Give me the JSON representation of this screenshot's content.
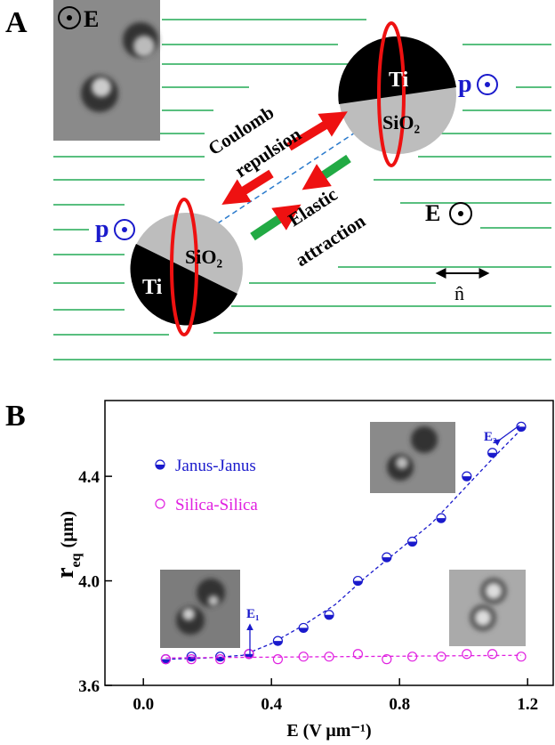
{
  "panel_a": {
    "label": "A",
    "inset_label": "E",
    "top_particle": {
      "cap": "Ti",
      "body": "SiO₂",
      "dipole": "p"
    },
    "bottom_particle": {
      "cap": "Ti",
      "body": "SiO₂",
      "dipole": "p"
    },
    "repulsion": [
      "Coulomb",
      "repulsion"
    ],
    "attraction": [
      "Elastic",
      "attraction"
    ],
    "field": "E",
    "director": "n̂"
  },
  "chart_data": {
    "type": "scatter",
    "panel_label": "B",
    "xlabel": "E (V μm⁻¹)",
    "ylabel": "r",
    "ylabel_subscript": "eq",
    "ylabel_unit": "(μm)",
    "xlim": [
      -0.12,
      1.28
    ],
    "ylim": [
      3.6,
      4.69
    ],
    "xticks": [
      {
        "value": 0,
        "label": "0.0"
      },
      0.4,
      0.8,
      1.2
    ],
    "yticks": [
      3.6,
      {
        "value": 4,
        "label": "4.0"
      },
      4.4
    ],
    "series": [
      {
        "name": "Janus-Janus",
        "color": "#1a1acc",
        "marker": "half",
        "x": [
          0.07,
          0.15,
          0.24,
          0.33,
          0.42,
          0.5,
          0.58,
          0.67,
          0.76,
          0.84,
          0.93,
          1.01,
          1.09,
          1.18
        ],
        "values": [
          3.7,
          3.71,
          3.71,
          3.72,
          3.77,
          3.82,
          3.87,
          4.0,
          4.09,
          4.15,
          4.24,
          4.4,
          4.49,
          4.59
        ],
        "fit_x": [
          0.07,
          0.2,
          0.31,
          0.4,
          0.5,
          0.6,
          0.7,
          0.8,
          0.9,
          1.0,
          1.1,
          1.18
        ],
        "fit_values": [
          3.7,
          3.705,
          3.715,
          3.76,
          3.83,
          3.91,
          4.02,
          4.12,
          4.22,
          4.35,
          4.48,
          4.58
        ]
      },
      {
        "name": "Silica-Silica",
        "color": "#e020e0",
        "marker": "open",
        "x": [
          0.07,
          0.15,
          0.24,
          0.33,
          0.42,
          0.5,
          0.58,
          0.67,
          0.76,
          0.84,
          0.93,
          1.01,
          1.09,
          1.18
        ],
        "values": [
          3.7,
          3.7,
          3.7,
          3.72,
          3.7,
          3.71,
          3.71,
          3.72,
          3.7,
          3.71,
          3.71,
          3.72,
          3.72,
          3.71
        ],
        "fit_x": [
          0.07,
          1.18
        ],
        "fit_values": [
          3.705,
          3.715
        ]
      }
    ],
    "annotations": [
      "E₁",
      "E₂"
    ]
  }
}
